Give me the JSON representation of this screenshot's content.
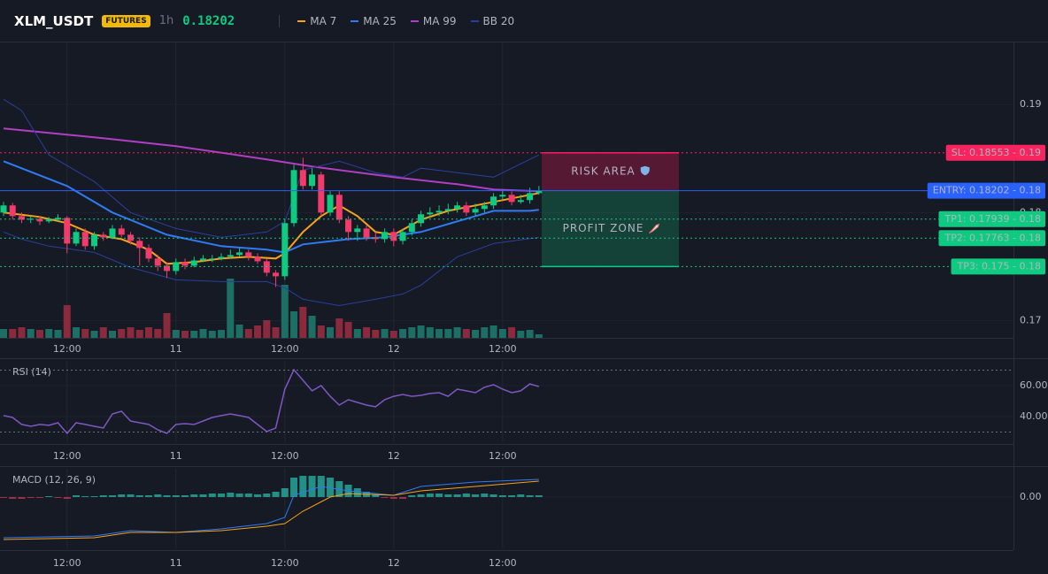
{
  "header": {
    "symbol": "XLM_USDT",
    "badge": "FUTURES",
    "interval": "1h",
    "price": 0.18202
  },
  "chart_data": [
    {
      "type": "candlestick",
      "up_color": "#0ecb81",
      "down_color": "#f23b6b",
      "volume_up_color": "#1d6f66",
      "volume_down_color": "#8a2a3c",
      "grid": true,
      "x": [
        0,
        1,
        2,
        3,
        4,
        5,
        6,
        7,
        8,
        9,
        10,
        11,
        12,
        13,
        14,
        15,
        16,
        17,
        18,
        19,
        20,
        21,
        22,
        23,
        24,
        25,
        26,
        27,
        28,
        29,
        30,
        31,
        32,
        33,
        34,
        35,
        36,
        37,
        38,
        39,
        40,
        41,
        42,
        43,
        44,
        45,
        46,
        47,
        48,
        49,
        50,
        51,
        52,
        53,
        54,
        55,
        56,
        57,
        58,
        59
      ],
      "open": [
        0.18,
        0.18066,
        0.17967,
        0.17934,
        0.17943,
        0.17918,
        0.17934,
        0.17951,
        0.17713,
        0.1782,
        0.17689,
        0.17795,
        0.1777,
        0.17852,
        0.17795,
        0.17738,
        0.17672,
        0.17574,
        0.17508,
        0.17459,
        0.17541,
        0.17508,
        0.17557,
        0.17574,
        0.17574,
        0.1759,
        0.17607,
        0.17631,
        0.1759,
        0.17549,
        0.17443,
        0.1741,
        0.17902,
        0.18393,
        0.18246,
        0.18352,
        0.18,
        0.18164,
        0.17934,
        0.1782,
        0.17852,
        0.1777,
        0.17754,
        0.1782,
        0.17738,
        0.1782,
        0.17902,
        0.17984,
        0.18,
        0.18016,
        0.18033,
        0.18066,
        0.18,
        0.18033,
        0.18066,
        0.18148,
        0.18164,
        0.18098,
        0.18115,
        0.1818
      ],
      "high": [
        0.18098,
        0.1809,
        0.18,
        0.17967,
        0.17967,
        0.17959,
        0.17984,
        0.17967,
        0.17852,
        0.17852,
        0.1782,
        0.1782,
        0.17885,
        0.17885,
        0.1782,
        0.1777,
        0.17705,
        0.17607,
        0.17541,
        0.17574,
        0.17574,
        0.1759,
        0.17607,
        0.17607,
        0.17623,
        0.17656,
        0.17672,
        0.17656,
        0.17623,
        0.17574,
        0.17467,
        0.17934,
        0.18443,
        0.18508,
        0.1841,
        0.18377,
        0.18197,
        0.18197,
        0.17967,
        0.17885,
        0.17885,
        0.1782,
        0.17852,
        0.17852,
        0.17852,
        0.17934,
        0.18016,
        0.18049,
        0.18066,
        0.18082,
        0.18098,
        0.18098,
        0.18082,
        0.18098,
        0.1818,
        0.18213,
        0.18197,
        0.18164,
        0.1823,
        0.18246
      ],
      "low": [
        0.17967,
        0.17934,
        0.17902,
        0.17902,
        0.17885,
        0.17902,
        0.17918,
        0.17623,
        0.17689,
        0.17656,
        0.17656,
        0.17738,
        0.17754,
        0.1777,
        0.17705,
        0.17508,
        0.17541,
        0.17459,
        0.17393,
        0.17426,
        0.17475,
        0.17492,
        0.17541,
        0.17541,
        0.17557,
        0.17574,
        0.1759,
        0.17557,
        0.17525,
        0.1741,
        0.17311,
        0.17377,
        0.17869,
        0.18213,
        0.18213,
        0.17967,
        0.17967,
        0.17902,
        0.17738,
        0.17738,
        0.17738,
        0.17721,
        0.17721,
        0.17689,
        0.17705,
        0.17787,
        0.17869,
        0.17951,
        0.17967,
        0.17984,
        0.18,
        0.17967,
        0.17967,
        0.18,
        0.18033,
        0.18115,
        0.18066,
        0.18082,
        0.18082,
        0.18164
      ],
      "close": [
        0.18066,
        0.17967,
        0.17934,
        0.17943,
        0.17918,
        0.17934,
        0.17951,
        0.17713,
        0.1782,
        0.17689,
        0.17795,
        0.1777,
        0.17852,
        0.17795,
        0.17738,
        0.17672,
        0.17574,
        0.17508,
        0.17459,
        0.17541,
        0.17508,
        0.17557,
        0.17574,
        0.17574,
        0.1759,
        0.17607,
        0.17631,
        0.1759,
        0.17549,
        0.17443,
        0.1741,
        0.17902,
        0.18393,
        0.18246,
        0.18352,
        0.18,
        0.18164,
        0.17934,
        0.1782,
        0.17852,
        0.1777,
        0.17754,
        0.1782,
        0.17738,
        0.1782,
        0.17902,
        0.17984,
        0.18,
        0.18016,
        0.18033,
        0.18066,
        0.18,
        0.18033,
        0.18066,
        0.18148,
        0.18164,
        0.18098,
        0.18115,
        0.1818,
        0.18202
      ],
      "volume": [
        10,
        10,
        12,
        10,
        9,
        10,
        9,
        37,
        12,
        10,
        8,
        12,
        8,
        10,
        12,
        9,
        12,
        10,
        28,
        9,
        8,
        8,
        10,
        8,
        9,
        67,
        15,
        10,
        14,
        20,
        12,
        60,
        30,
        35,
        25,
        14,
        12,
        22,
        18,
        10,
        12,
        9,
        10,
        8,
        10,
        12,
        14,
        12,
        10,
        10,
        12,
        10,
        9,
        12,
        14,
        10,
        12,
        8,
        9,
        4
      ],
      "series": [
        {
          "name": "MA 7",
          "color": "#f7a21b",
          "x": [
            0,
            4,
            7,
            10,
            13,
            16,
            18,
            21,
            24,
            27,
            30,
            31,
            33,
            35,
            37,
            39,
            41,
            43,
            46,
            49,
            52,
            55,
            58,
            59
          ],
          "values": [
            0.18,
            0.17959,
            0.17902,
            0.17795,
            0.17754,
            0.17656,
            0.17525,
            0.17541,
            0.17574,
            0.1759,
            0.17574,
            0.17623,
            0.1782,
            0.17967,
            0.18066,
            0.17967,
            0.1782,
            0.17795,
            0.17934,
            0.18016,
            0.18066,
            0.18115,
            0.18164,
            0.1818
          ]
        },
        {
          "name": "MA 25",
          "color": "#2f7bf5",
          "x": [
            0,
            7,
            12,
            18,
            24,
            29,
            31,
            33,
            38,
            42,
            46,
            50,
            54,
            58,
            59
          ],
          "values": [
            0.18475,
            0.18246,
            0.18,
            0.17795,
            0.17689,
            0.17656,
            0.17631,
            0.17705,
            0.17754,
            0.1777,
            0.1782,
            0.17918,
            0.18016,
            0.18016,
            0.18025
          ]
        },
        {
          "name": "MA 99",
          "color": "#b03fc4",
          "x": [
            0,
            10,
            19,
            29,
            34,
            43,
            50,
            54,
            59
          ],
          "values": [
            0.18779,
            0.18697,
            0.18615,
            0.18492,
            0.18426,
            0.18328,
            0.18262,
            0.18213,
            0.18197
          ]
        },
        {
          "name": "BB 20",
          "color": "#2a3f9c",
          "x": [
            0,
            2,
            5,
            10,
            14,
            19,
            24,
            29,
            31,
            33,
            37,
            41,
            44,
            46,
            50,
            54,
            59
          ],
          "values": [
            0.19049,
            0.18943,
            0.18533,
            0.18287,
            0.18,
            0.17852,
            0.1777,
            0.1782,
            0.17918,
            0.18393,
            0.18475,
            0.18369,
            0.18328,
            0.1841,
            0.18369,
            0.18328,
            0.18533
          ],
          "lower": [
            0.1782,
            0.17754,
            0.17689,
            0.17631,
            0.17492,
            0.17377,
            0.17361,
            0.17361,
            0.17303,
            0.17197,
            0.17139,
            0.17197,
            0.17246,
            0.17328,
            0.1759,
            0.17713,
            0.1777
          ]
        }
      ],
      "levels": [
        {
          "value": 0.18553,
          "label": "SL: 0.18553 - 0.19",
          "color": "#f7245f",
          "text_color": "#ffffff",
          "style": "dotted"
        },
        {
          "value": 0.18202,
          "label": "ENTRY: 0.18202 - 0.18",
          "color": "#2962ff",
          "text_color": "#ffffff",
          "style": "solid"
        },
        {
          "value": 0.17939,
          "label": "TP1: 0.17939 - 0.18",
          "color": "#0ecb81",
          "text_color": "#0b1a14",
          "style": "dotted"
        },
        {
          "value": 0.17763,
          "label": "TP2: 0.17763 - 0.18",
          "color": "#0ecb81",
          "text_color": "#0b1a14",
          "style": "dotted"
        },
        {
          "value": 0.175,
          "label": "TP3: 0.175 - 0.18",
          "color": "#0ecb81",
          "text_color": "#0b1a14",
          "style": "dotted"
        }
      ],
      "zones": [
        {
          "label": "RISK AREA",
          "color": "#ff1a5e"
        },
        {
          "label": "PROFIT ZONE",
          "color": "#0ecb81"
        }
      ],
      "xlim": [
        -0.39,
        111.3
      ],
      "xticks": [
        {
          "value": 7,
          "label": "12:00"
        },
        {
          "value": 19,
          "label": "11"
        },
        {
          "value": 31,
          "label": "12:00"
        },
        {
          "value": 43,
          "label": "12"
        },
        {
          "value": 55,
          "label": "12:00"
        }
      ],
      "ylim": [
        0.1684,
        0.1964
      ],
      "yticks": [
        0.17,
        0.18,
        0.19
      ]
    },
    {
      "type": "line",
      "title": "RSI (14)",
      "color": "#7e57c2",
      "levels": [
        70,
        30
      ],
      "x": [
        0,
        1,
        2,
        3,
        4,
        5,
        6,
        7,
        8,
        9,
        10,
        11,
        12,
        13,
        14,
        15,
        16,
        17,
        18,
        19,
        20,
        21,
        22,
        23,
        24,
        25,
        26,
        27,
        28,
        29,
        30,
        31,
        32,
        33,
        34,
        35,
        36,
        37,
        38,
        39,
        40,
        41,
        42,
        43,
        44,
        45,
        46,
        47,
        48,
        49,
        50,
        51,
        52,
        53,
        54,
        55,
        56,
        57,
        58,
        59
      ],
      "series": [
        {
          "color": "#7e57c2",
          "values": [
            40.6,
            39.4,
            34.9,
            33.7,
            34.9,
            34.3,
            36.0,
            29.1,
            36.0,
            34.9,
            33.7,
            32.6,
            41.7,
            43.4,
            37.1,
            36.0,
            34.9,
            31.4,
            29.1,
            34.9,
            35.4,
            34.9,
            37.1,
            39.4,
            40.6,
            41.7,
            40.6,
            39.4,
            34.9,
            30.3,
            32.6,
            57.7,
            70.3,
            63.4,
            56.6,
            60.0,
            53.1,
            47.4,
            50.9,
            49.1,
            47.4,
            46.3,
            50.9,
            53.1,
            54.3,
            53.1,
            53.7,
            54.9,
            55.4,
            53.1,
            57.7,
            56.6,
            55.4,
            58.9,
            60.6,
            57.7,
            55.4,
            56.6,
            61.1,
            59.4
          ]
        }
      ],
      "xlim": [
        -0.39,
        111.3
      ],
      "xticks": [
        {
          "value": 7,
          "label": "12:00"
        },
        {
          "value": 19,
          "label": "11"
        },
        {
          "value": 31,
          "label": "12:00"
        },
        {
          "value": 43,
          "label": "12"
        },
        {
          "value": 55,
          "label": "12:00"
        }
      ],
      "ylim": [
        23.4,
        76
      ],
      "yticks": [
        {
          "value": 40,
          "label": "40.00"
        },
        {
          "value": 60,
          "label": "60.00"
        }
      ]
    },
    {
      "type": "macd",
      "title": "MACD (12, 26, 9)",
      "up_color": "#26a69a",
      "down_color": "#b8344f",
      "x": [
        0,
        1,
        2,
        3,
        4,
        5,
        6,
        7,
        8,
        9,
        10,
        11,
        12,
        13,
        14,
        15,
        16,
        17,
        18,
        19,
        20,
        21,
        22,
        23,
        24,
        25,
        26,
        27,
        28,
        29,
        30,
        31,
        32,
        33,
        34,
        35,
        36,
        37,
        38,
        39,
        40,
        41,
        42,
        43,
        44,
        45,
        46,
        47,
        48,
        49,
        50,
        51,
        52,
        53,
        54,
        55,
        56,
        57,
        58,
        59
      ],
      "histogram": [
        -5e-05,
        -0.0001,
        -0.0001,
        -5e-05,
        -5e-05,
        5e-05,
        -5e-05,
        -0.0001,
        0.0001,
        5e-05,
        5e-05,
        0.0001,
        0.0001,
        0.00015,
        0.00015,
        0.0001,
        0.0001,
        0.00015,
        0.0001,
        0.0001,
        0.0001,
        0.00015,
        0.00015,
        0.0002,
        0.0002,
        0.00025,
        0.0002,
        0.0002,
        0.00015,
        0.0002,
        0.0003,
        0.0005,
        0.0011,
        0.0012,
        0.0012,
        0.0012,
        0.0011,
        0.0009,
        0.0007,
        0.0005,
        0.0003,
        0.00015,
        -5e-05,
        -0.0001,
        -0.0001,
        0.0001,
        0.00015,
        0.0002,
        0.0002,
        0.00015,
        0.00015,
        0.0002,
        0.00015,
        0.0002,
        0.00015,
        0.0001,
        0.0001,
        0.00015,
        0.0001,
        0.0001
      ],
      "series": [
        {
          "color": "#2f7bf5",
          "x": [
            0,
            10,
            14,
            19,
            24,
            29,
            31,
            32,
            35,
            38,
            43,
            46,
            52,
            59
          ],
          "values": [
            -0.0023,
            -0.0022,
            -0.0019,
            -0.002,
            -0.0018,
            -0.0015,
            -0.00115,
            0.0001,
            0.0006,
            0.00035,
            0.0001,
            0.0006,
            0.00085,
            0.001
          ]
        },
        {
          "color": "#f7a21b",
          "x": [
            0,
            10,
            14,
            19,
            24,
            29,
            31,
            33,
            36,
            38,
            43,
            46,
            52,
            59
          ],
          "values": [
            -0.0024,
            -0.0023,
            -0.002,
            -0.002,
            -0.0019,
            -0.00165,
            -0.0015,
            -0.0008,
            0,
            0.0002,
            0.0001,
            0.00035,
            0.0006,
            0.0009
          ]
        }
      ],
      "xlim": [
        -0.39,
        111.3
      ],
      "xticks": [
        {
          "value": 7,
          "label": "12:00"
        },
        {
          "value": 19,
          "label": "11"
        },
        {
          "value": 31,
          "label": "12:00"
        },
        {
          "value": 43,
          "label": "12"
        },
        {
          "value": 55,
          "label": "12:00"
        }
      ],
      "ylim": [
        -0.0029,
        0.0016
      ],
      "yticks": [
        {
          "value": 0,
          "label": "0.00"
        }
      ]
    }
  ]
}
